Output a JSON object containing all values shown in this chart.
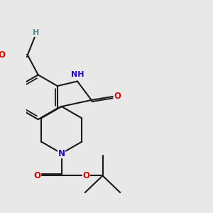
{
  "bg": "#e8e8e8",
  "bc": "#1a1a1a",
  "nc": "#2200dd",
  "oc": "#dd0000",
  "hc": "#4a9090",
  "lw": 1.5,
  "fs": 8.5,
  "xlim": [
    -1.5,
    5.5
  ],
  "ylim": [
    -4.5,
    4.5
  ],
  "figsize": [
    3.0,
    3.0
  ],
  "dpi": 100
}
